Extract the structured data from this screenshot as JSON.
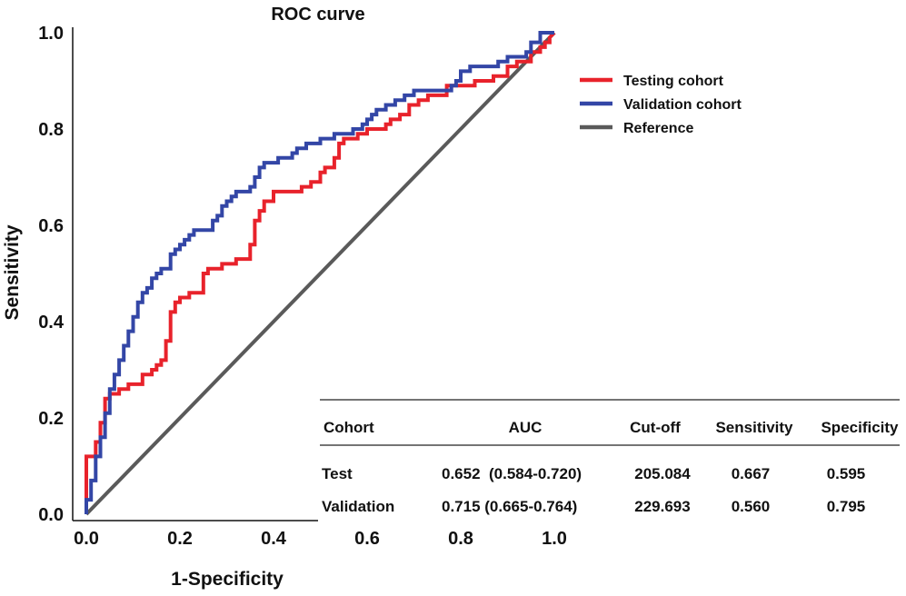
{
  "chart_data": {
    "type": "line",
    "title": "ROC curve",
    "xlabel": "1-Specificity",
    "ylabel": "Sensitivity",
    "xlim": [
      0,
      1
    ],
    "ylim": [
      0,
      1
    ],
    "x_ticks": [
      "0.0",
      "0.2",
      "0.4",
      "0.6",
      "0.8",
      "1.0"
    ],
    "y_ticks": [
      "0.0",
      "0.2",
      "0.4",
      "0.6",
      "0.8",
      "1.0"
    ],
    "grid": false,
    "legend_position": "top-right",
    "series": [
      {
        "name": "Testing cohort",
        "color": "#e8222b",
        "points": [
          [
            0,
            0
          ],
          [
            0,
            0.12
          ],
          [
            0.02,
            0.12
          ],
          [
            0.02,
            0.15
          ],
          [
            0.03,
            0.15
          ],
          [
            0.03,
            0.19
          ],
          [
            0.04,
            0.19
          ],
          [
            0.04,
            0.24
          ],
          [
            0.05,
            0.24
          ],
          [
            0.05,
            0.25
          ],
          [
            0.07,
            0.25
          ],
          [
            0.07,
            0.26
          ],
          [
            0.09,
            0.26
          ],
          [
            0.09,
            0.27
          ],
          [
            0.12,
            0.27
          ],
          [
            0.12,
            0.29
          ],
          [
            0.14,
            0.29
          ],
          [
            0.14,
            0.3
          ],
          [
            0.15,
            0.3
          ],
          [
            0.15,
            0.31
          ],
          [
            0.16,
            0.31
          ],
          [
            0.16,
            0.32
          ],
          [
            0.17,
            0.32
          ],
          [
            0.17,
            0.36
          ],
          [
            0.18,
            0.36
          ],
          [
            0.18,
            0.42
          ],
          [
            0.19,
            0.42
          ],
          [
            0.19,
            0.44
          ],
          [
            0.2,
            0.44
          ],
          [
            0.2,
            0.45
          ],
          [
            0.22,
            0.45
          ],
          [
            0.22,
            0.46
          ],
          [
            0.25,
            0.46
          ],
          [
            0.25,
            0.5
          ],
          [
            0.26,
            0.5
          ],
          [
            0.26,
            0.51
          ],
          [
            0.29,
            0.51
          ],
          [
            0.29,
            0.52
          ],
          [
            0.32,
            0.52
          ],
          [
            0.32,
            0.53
          ],
          [
            0.35,
            0.53
          ],
          [
            0.35,
            0.56
          ],
          [
            0.36,
            0.56
          ],
          [
            0.36,
            0.61
          ],
          [
            0.37,
            0.61
          ],
          [
            0.37,
            0.63
          ],
          [
            0.38,
            0.63
          ],
          [
            0.38,
            0.65
          ],
          [
            0.4,
            0.65
          ],
          [
            0.4,
            0.67
          ],
          [
            0.46,
            0.67
          ],
          [
            0.46,
            0.68
          ],
          [
            0.48,
            0.68
          ],
          [
            0.48,
            0.69
          ],
          [
            0.5,
            0.69
          ],
          [
            0.5,
            0.71
          ],
          [
            0.51,
            0.71
          ],
          [
            0.51,
            0.72
          ],
          [
            0.53,
            0.72
          ],
          [
            0.53,
            0.74
          ],
          [
            0.54,
            0.74
          ],
          [
            0.54,
            0.77
          ],
          [
            0.55,
            0.77
          ],
          [
            0.55,
            0.78
          ],
          [
            0.58,
            0.78
          ],
          [
            0.58,
            0.79
          ],
          [
            0.6,
            0.79
          ],
          [
            0.6,
            0.8
          ],
          [
            0.64,
            0.8
          ],
          [
            0.64,
            0.81
          ],
          [
            0.65,
            0.81
          ],
          [
            0.65,
            0.82
          ],
          [
            0.67,
            0.82
          ],
          [
            0.67,
            0.83
          ],
          [
            0.69,
            0.83
          ],
          [
            0.69,
            0.85
          ],
          [
            0.71,
            0.85
          ],
          [
            0.71,
            0.86
          ],
          [
            0.73,
            0.86
          ],
          [
            0.73,
            0.87
          ],
          [
            0.77,
            0.87
          ],
          [
            0.77,
            0.89
          ],
          [
            0.83,
            0.89
          ],
          [
            0.83,
            0.9
          ],
          [
            0.87,
            0.9
          ],
          [
            0.87,
            0.91
          ],
          [
            0.9,
            0.91
          ],
          [
            0.9,
            0.93
          ],
          [
            0.92,
            0.93
          ],
          [
            0.92,
            0.94
          ],
          [
            0.95,
            0.94
          ],
          [
            0.95,
            0.96
          ],
          [
            0.97,
            0.96
          ],
          [
            0.97,
            0.97
          ],
          [
            0.98,
            0.97
          ],
          [
            0.98,
            0.98
          ],
          [
            0.99,
            0.98
          ],
          [
            0.99,
            0.99
          ],
          [
            1,
            1
          ]
        ]
      },
      {
        "name": "Validation cohort",
        "color": "#3346a6",
        "points": [
          [
            0,
            0
          ],
          [
            0,
            0.03
          ],
          [
            0.01,
            0.03
          ],
          [
            0.01,
            0.07
          ],
          [
            0.02,
            0.07
          ],
          [
            0.02,
            0.12
          ],
          [
            0.03,
            0.12
          ],
          [
            0.03,
            0.16
          ],
          [
            0.04,
            0.16
          ],
          [
            0.04,
            0.21
          ],
          [
            0.05,
            0.21
          ],
          [
            0.05,
            0.26
          ],
          [
            0.06,
            0.26
          ],
          [
            0.06,
            0.29
          ],
          [
            0.07,
            0.29
          ],
          [
            0.07,
            0.32
          ],
          [
            0.08,
            0.32
          ],
          [
            0.08,
            0.35
          ],
          [
            0.09,
            0.35
          ],
          [
            0.09,
            0.38
          ],
          [
            0.1,
            0.38
          ],
          [
            0.1,
            0.41
          ],
          [
            0.11,
            0.41
          ],
          [
            0.11,
            0.44
          ],
          [
            0.12,
            0.44
          ],
          [
            0.12,
            0.46
          ],
          [
            0.13,
            0.46
          ],
          [
            0.13,
            0.47
          ],
          [
            0.14,
            0.47
          ],
          [
            0.14,
            0.49
          ],
          [
            0.15,
            0.49
          ],
          [
            0.15,
            0.5
          ],
          [
            0.16,
            0.5
          ],
          [
            0.16,
            0.51
          ],
          [
            0.18,
            0.51
          ],
          [
            0.18,
            0.54
          ],
          [
            0.19,
            0.54
          ],
          [
            0.19,
            0.55
          ],
          [
            0.2,
            0.55
          ],
          [
            0.2,
            0.56
          ],
          [
            0.21,
            0.56
          ],
          [
            0.21,
            0.57
          ],
          [
            0.22,
            0.57
          ],
          [
            0.22,
            0.58
          ],
          [
            0.23,
            0.58
          ],
          [
            0.23,
            0.59
          ],
          [
            0.27,
            0.59
          ],
          [
            0.27,
            0.61
          ],
          [
            0.28,
            0.61
          ],
          [
            0.28,
            0.62
          ],
          [
            0.29,
            0.62
          ],
          [
            0.29,
            0.64
          ],
          [
            0.3,
            0.64
          ],
          [
            0.3,
            0.65
          ],
          [
            0.31,
            0.65
          ],
          [
            0.31,
            0.66
          ],
          [
            0.32,
            0.66
          ],
          [
            0.32,
            0.67
          ],
          [
            0.35,
            0.67
          ],
          [
            0.35,
            0.68
          ],
          [
            0.36,
            0.68
          ],
          [
            0.36,
            0.7
          ],
          [
            0.37,
            0.7
          ],
          [
            0.37,
            0.72
          ],
          [
            0.38,
            0.72
          ],
          [
            0.38,
            0.73
          ],
          [
            0.41,
            0.73
          ],
          [
            0.41,
            0.74
          ],
          [
            0.44,
            0.74
          ],
          [
            0.44,
            0.75
          ],
          [
            0.45,
            0.75
          ],
          [
            0.45,
            0.76
          ],
          [
            0.47,
            0.76
          ],
          [
            0.47,
            0.77
          ],
          [
            0.5,
            0.77
          ],
          [
            0.5,
            0.78
          ],
          [
            0.53,
            0.78
          ],
          [
            0.53,
            0.79
          ],
          [
            0.57,
            0.79
          ],
          [
            0.57,
            0.8
          ],
          [
            0.59,
            0.8
          ],
          [
            0.59,
            0.81
          ],
          [
            0.6,
            0.81
          ],
          [
            0.6,
            0.82
          ],
          [
            0.61,
            0.82
          ],
          [
            0.61,
            0.83
          ],
          [
            0.62,
            0.83
          ],
          [
            0.62,
            0.84
          ],
          [
            0.64,
            0.84
          ],
          [
            0.64,
            0.85
          ],
          [
            0.66,
            0.85
          ],
          [
            0.66,
            0.86
          ],
          [
            0.68,
            0.86
          ],
          [
            0.68,
            0.87
          ],
          [
            0.7,
            0.87
          ],
          [
            0.7,
            0.88
          ],
          [
            0.78,
            0.88
          ],
          [
            0.78,
            0.89
          ],
          [
            0.79,
            0.89
          ],
          [
            0.79,
            0.9
          ],
          [
            0.8,
            0.9
          ],
          [
            0.8,
            0.92
          ],
          [
            0.82,
            0.92
          ],
          [
            0.82,
            0.93
          ],
          [
            0.88,
            0.93
          ],
          [
            0.88,
            0.94
          ],
          [
            0.9,
            0.94
          ],
          [
            0.9,
            0.95
          ],
          [
            0.94,
            0.95
          ],
          [
            0.94,
            0.96
          ],
          [
            0.95,
            0.96
          ],
          [
            0.95,
            0.98
          ],
          [
            0.97,
            0.98
          ],
          [
            0.97,
            1.0
          ],
          [
            1,
            1
          ]
        ]
      },
      {
        "name": "Reference",
        "color": "#5a5a5a",
        "points": [
          [
            0,
            0
          ],
          [
            1,
            1
          ]
        ]
      }
    ],
    "table": {
      "headers": [
        "Cohort",
        "AUC",
        "Cut-off",
        "Sensitivity",
        "Specificity"
      ],
      "rows": [
        [
          "Test",
          "0.652  (0.584-0.720)",
          "205.084",
          "0.667",
          "0.595"
        ],
        [
          "Validation",
          "0.715 (0.665-0.764)",
          "229.693",
          "0.560",
          "0.795"
        ]
      ]
    }
  }
}
